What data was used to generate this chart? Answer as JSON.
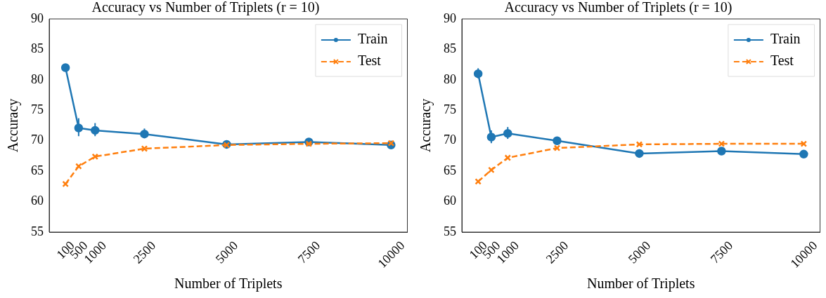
{
  "chart_data": [
    {
      "type": "line",
      "title": "Accuracy vs Number of Triplets (r = 10)",
      "xlabel": "Number of Triplets",
      "ylabel": "Accuracy",
      "x": [
        100,
        500,
        1000,
        2500,
        5000,
        7500,
        10000
      ],
      "xlim": [
        -395,
        10495
      ],
      "xticks": [
        100,
        500,
        1000,
        2500,
        5000,
        7500,
        10000
      ],
      "ylim": [
        55,
        90
      ],
      "yticks": [
        55,
        60,
        65,
        70,
        75,
        80,
        85,
        90
      ],
      "legend": "top right",
      "grid": false,
      "series": [
        {
          "name": "Train",
          "color": "#1f77b4",
          "marker": "circle",
          "line_style": "solid",
          "values": [
            82.0,
            72.1,
            71.7,
            71.1,
            69.4,
            69.8,
            69.3
          ],
          "errors": [
            null,
            [
              70.75,
              73.7
            ],
            [
              70.75,
              72.9
            ],
            [
              70.45,
              72.0
            ],
            null,
            null,
            null
          ]
        },
        {
          "name": "Test",
          "color": "#ff7f0e",
          "marker": "cross",
          "line_style": "dashed",
          "values": [
            62.9,
            65.8,
            67.4,
            68.7,
            69.3,
            69.5,
            69.6
          ]
        }
      ]
    },
    {
      "type": "line",
      "title": "Accuracy vs Number of Triplets (r = 10)",
      "xlabel": "Number of Triplets",
      "ylabel": "Accuracy",
      "x": [
        100,
        500,
        1000,
        2500,
        5000,
        7500,
        10000
      ],
      "xlim": [
        -395,
        10495
      ],
      "xticks": [
        100,
        500,
        1000,
        2500,
        5000,
        7500,
        10000
      ],
      "ylim": [
        55,
        90
      ],
      "yticks": [
        55,
        60,
        65,
        70,
        75,
        80,
        85,
        90
      ],
      "legend": "top right",
      "grid": false,
      "series": [
        {
          "name": "Train",
          "color": "#1f77b4",
          "marker": "circle",
          "line_style": "solid",
          "values": [
            81.0,
            70.6,
            71.2,
            70.0,
            67.9,
            68.3,
            67.8
          ],
          "errors": [
            [
              80.25,
              81.9
            ],
            [
              69.6,
              71.7
            ],
            [
              70.3,
              72.25
            ],
            [
              69.55,
              70.55
            ],
            null,
            null,
            null
          ]
        },
        {
          "name": "Test",
          "color": "#ff7f0e",
          "marker": "cross",
          "line_style": "dashed",
          "values": [
            63.3,
            65.2,
            67.2,
            68.8,
            69.4,
            69.5,
            69.5
          ]
        }
      ]
    }
  ]
}
